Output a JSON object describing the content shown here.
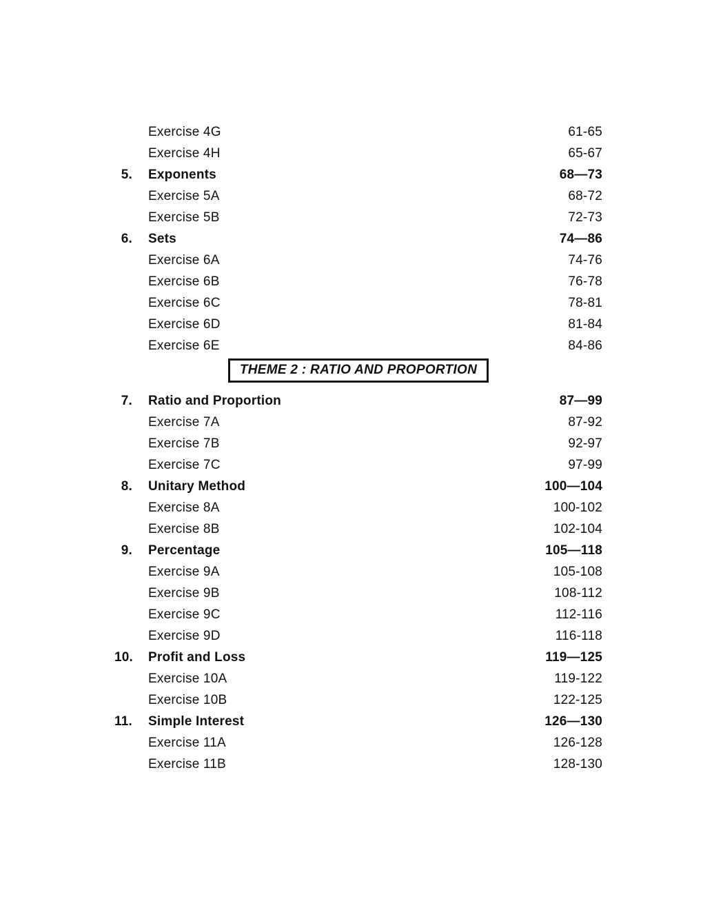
{
  "toc": {
    "entries": [
      {
        "type": "exercise",
        "num": "",
        "title": "Exercise 4G",
        "pages": "61-65"
      },
      {
        "type": "exercise",
        "num": "",
        "title": "Exercise 4H",
        "pages": "65-67"
      },
      {
        "type": "chapter",
        "num": "5.",
        "title": "Exponents",
        "pages": "68—73"
      },
      {
        "type": "exercise",
        "num": "",
        "title": "Exercise 5A",
        "pages": "68-72"
      },
      {
        "type": "exercise",
        "num": "",
        "title": "Exercise 5B",
        "pages": "72-73"
      },
      {
        "type": "chapter",
        "num": "6.",
        "title": "Sets",
        "pages": "74—86"
      },
      {
        "type": "exercise",
        "num": "",
        "title": "Exercise 6A",
        "pages": "74-76"
      },
      {
        "type": "exercise",
        "num": "",
        "title": "Exercise 6B",
        "pages": "76-78"
      },
      {
        "type": "exercise",
        "num": "",
        "title": "Exercise 6C",
        "pages": "78-81"
      },
      {
        "type": "exercise",
        "num": "",
        "title": "Exercise 6D",
        "pages": "81-84"
      },
      {
        "type": "exercise",
        "num": "",
        "title": "Exercise 6E",
        "pages": "84-86"
      },
      {
        "type": "theme",
        "num": "",
        "title": "THEME 2 : RATIO AND PROPORTION",
        "pages": ""
      },
      {
        "type": "chapter",
        "num": "7.",
        "title": "Ratio and Proportion",
        "pages": "87—99"
      },
      {
        "type": "exercise",
        "num": "",
        "title": "Exercise 7A",
        "pages": "87-92"
      },
      {
        "type": "exercise",
        "num": "",
        "title": "Exercise 7B",
        "pages": "92-97"
      },
      {
        "type": "exercise",
        "num": "",
        "title": "Exercise 7C",
        "pages": "97-99"
      },
      {
        "type": "chapter",
        "num": "8.",
        "title": "Unitary Method",
        "pages": "100—104"
      },
      {
        "type": "exercise",
        "num": "",
        "title": "Exercise 8A",
        "pages": "100-102"
      },
      {
        "type": "exercise",
        "num": "",
        "title": "Exercise 8B",
        "pages": "102-104"
      },
      {
        "type": "chapter",
        "num": "9.",
        "title": "Percentage",
        "pages": "105—118"
      },
      {
        "type": "exercise",
        "num": "",
        "title": "Exercise 9A",
        "pages": "105-108"
      },
      {
        "type": "exercise",
        "num": "",
        "title": "Exercise 9B",
        "pages": "108-112"
      },
      {
        "type": "exercise",
        "num": "",
        "title": "Exercise 9C",
        "pages": "112-116"
      },
      {
        "type": "exercise",
        "num": "",
        "title": "Exercise 9D",
        "pages": "116-118"
      },
      {
        "type": "chapter",
        "num": "10.",
        "title": "Profit and Loss",
        "pages": "119—125"
      },
      {
        "type": "exercise",
        "num": "",
        "title": "Exercise 10A",
        "pages": "119-122"
      },
      {
        "type": "exercise",
        "num": "",
        "title": "Exercise 10B",
        "pages": "122-125"
      },
      {
        "type": "chapter",
        "num": "11.",
        "title": "Simple Interest",
        "pages": "126—130"
      },
      {
        "type": "exercise",
        "num": "",
        "title": "Exercise 11A",
        "pages": "126-128"
      },
      {
        "type": "exercise",
        "num": "",
        "title": "Exercise 11B",
        "pages": "128-130"
      }
    ]
  },
  "colors": {
    "page_background": "#ffffff",
    "text": "#111111",
    "banner_border": "#111111"
  }
}
